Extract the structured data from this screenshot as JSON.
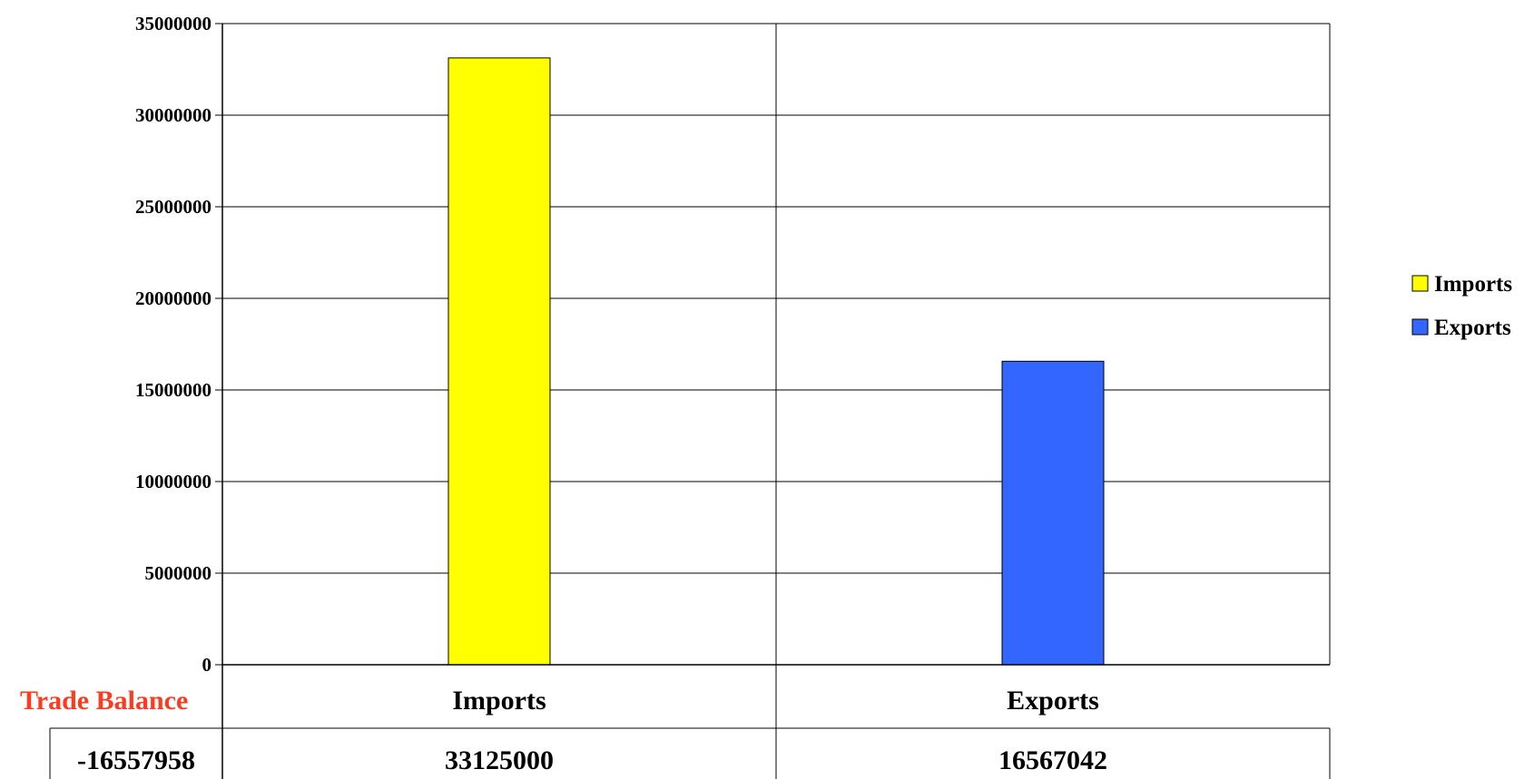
{
  "chart_data": {
    "type": "bar",
    "categories": [
      "Imports",
      "Exports"
    ],
    "values": [
      33125000,
      16567042
    ],
    "bar_colors": [
      "#ffff00",
      "#3366ff"
    ],
    "ylim": [
      0,
      35000000
    ],
    "yticks": [
      "0",
      "5000000",
      "10000000",
      "15000000",
      "20000000",
      "25000000",
      "30000000",
      "35000000"
    ],
    "grid": true,
    "legend": {
      "placement": "right",
      "entries": [
        {
          "name": "Imports",
          "color": "#ffff00"
        },
        {
          "name": "Exports",
          "color": "#3366ff"
        }
      ]
    },
    "data_table": {
      "row_label": "Trade Balance",
      "row_label_color": "#ff3b1f",
      "balance": "-16557958",
      "cells": [
        "33125000",
        "16567042"
      ]
    }
  }
}
